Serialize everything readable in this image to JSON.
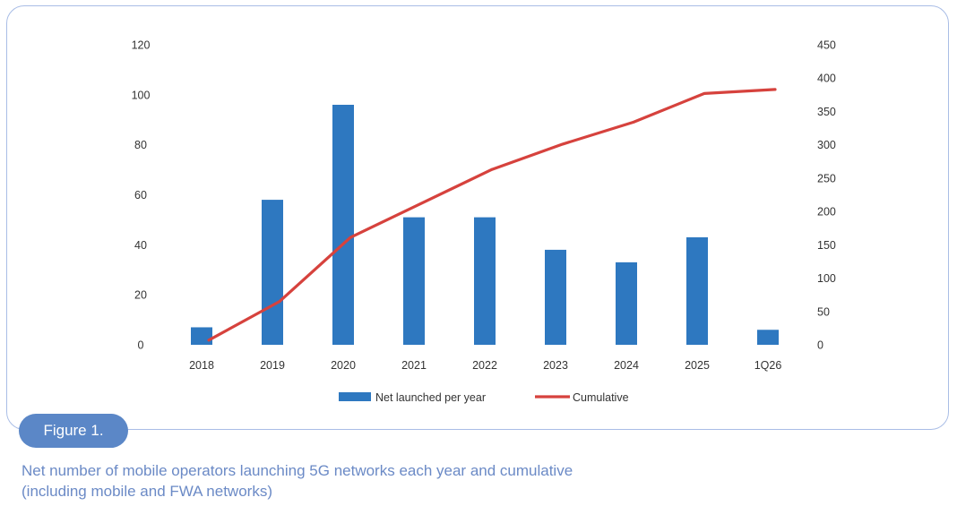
{
  "figure": {
    "label": "Figure 1.",
    "caption_lines": [
      "Net number of mobile operators launching 5G networks each year and cumulative",
      "(including mobile and FWA networks)"
    ]
  },
  "colors": {
    "bars": "#2e78c0",
    "line": "#d6423d",
    "frame": "#a9bde6",
    "label_bg": "#5b87c7",
    "caption": "#6b8ac6"
  },
  "chart_data": {
    "type": "bar",
    "categories": [
      "2018",
      "2019",
      "2020",
      "2021",
      "2022",
      "2023",
      "2024",
      "2025",
      "1Q26"
    ],
    "series": [
      {
        "name": "Net launched per year",
        "type": "bar",
        "axis": "left",
        "values": [
          7,
          58,
          96,
          51,
          51,
          38,
          33,
          43,
          6
        ]
      },
      {
        "name": "Cumulative",
        "type": "line",
        "axis": "right",
        "values": [
          7,
          65,
          161,
          212,
          263,
          301,
          334,
          377,
          383
        ]
      }
    ],
    "y_left": {
      "lim": [
        0,
        120
      ],
      "ticks": [
        "0",
        "20",
        "40",
        "60",
        "80",
        "100",
        "120"
      ]
    },
    "y_right": {
      "lim": [
        0,
        450
      ],
      "ticks": [
        "0",
        "50",
        "100",
        "150",
        "200",
        "250",
        "300",
        "350",
        "400",
        "450"
      ]
    },
    "grid": false,
    "legend_position": "bottom"
  }
}
